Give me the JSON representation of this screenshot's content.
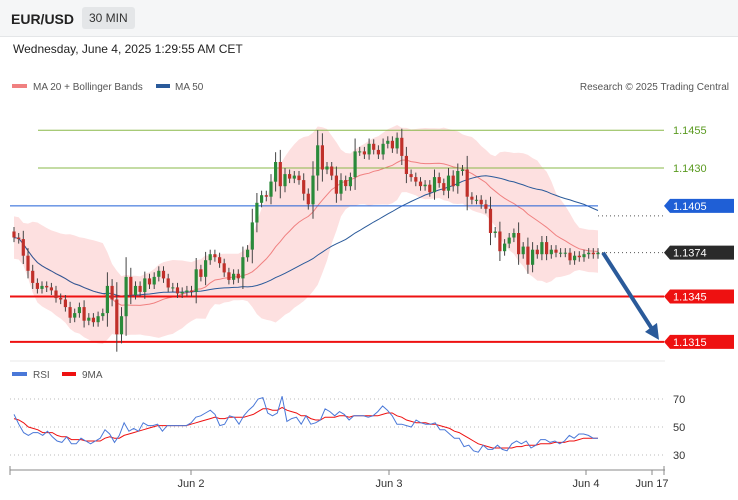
{
  "header": {
    "pair": "EUR/USD",
    "timeframe": "30 MIN"
  },
  "timestamp": "Wednesday, June 4, 2025 1:29:55 AM CET",
  "legend": {
    "ma20": "MA 20 + Bollinger Bands",
    "ma50": "MA 50",
    "credit": "Research © 2025 Trading Central"
  },
  "rsi_legend": {
    "rsi": "RSI",
    "ma9": "9MA"
  },
  "colors": {
    "support": "#ee1111",
    "pivot": "#1f5fd6",
    "resistance": "#8ab84a",
    "ma20": "#f08080",
    "ma50": "#2a5a9a",
    "candle_up": "#2a8a3a",
    "candle_down": "#c0302a",
    "arrow": "#2a5a9a"
  },
  "chart_data": [
    {
      "type": "candlestick",
      "title": "EUR/USD",
      "ylim": [
        1.1303,
        1.1475
      ],
      "levels": [
        {
          "value": "1.1455",
          "kind": "resistance"
        },
        {
          "value": "1.1430",
          "kind": "resistance"
        },
        {
          "value": "1.1405",
          "kind": "pivot"
        },
        {
          "value": "1.1374",
          "kind": "current"
        },
        {
          "value": "1.1345",
          "kind": "support"
        },
        {
          "value": "1.1315",
          "kind": "support"
        }
      ],
      "close": [
        1.1384,
        1.1383,
        1.1372,
        1.1362,
        1.1354,
        1.135,
        1.1352,
        1.1351,
        1.1349,
        1.1344,
        1.1343,
        1.1338,
        1.1331,
        1.1334,
        1.1338,
        1.1329,
        1.1331,
        1.1328,
        1.1332,
        1.1334,
        1.1352,
        1.1343,
        1.132,
        1.1332,
        1.1358,
        1.1346,
        1.1352,
        1.1348,
        1.1357,
        1.1353,
        1.1358,
        1.1362,
        1.1357,
        1.1351,
        1.1351,
        1.1347,
        1.1348,
        1.1349,
        1.1348,
        1.1363,
        1.1358,
        1.1369,
        1.1373,
        1.1371,
        1.1367,
        1.1361,
        1.1356,
        1.136,
        1.1357,
        1.1371,
        1.1376,
        1.1394,
        1.1407,
        1.1412,
        1.1411,
        1.1421,
        1.1434,
        1.1418,
        1.1426,
        1.1423,
        1.1425,
        1.1422,
        1.1413,
        1.1406,
        1.1425,
        1.1445,
        1.1429,
        1.1431,
        1.1425,
        1.1413,
        1.1422,
        1.1418,
        1.1424,
        1.1441,
        1.1441,
        1.1439,
        1.1446,
        1.1442,
        1.1439,
        1.1446,
        1.1448,
        1.1443,
        1.145,
        1.1438,
        1.1426,
        1.1424,
        1.1421,
        1.1418,
        1.1419,
        1.1414,
        1.1424,
        1.142,
        1.1415,
        1.1425,
        1.1418,
        1.1428,
        1.1429,
        1.1411,
        1.1409,
        1.1409,
        1.1406,
        1.1403,
        1.1387,
        1.1388,
        1.1375,
        1.138,
        1.1384,
        1.1387,
        1.1373,
        1.1378,
        1.1366,
        1.1376,
        1.1373,
        1.1381,
        1.1373,
        1.1376,
        1.1374,
        1.1374,
        1.1374,
        1.1369,
        1.1372,
        1.1371,
        1.1373,
        1.1374,
        1.1373,
        1.1374
      ],
      "x_labels": [
        "Jun 2",
        "Jun 3",
        "Jun 4",
        "Jun 17"
      ],
      "forecast_target": 1.1315
    },
    {
      "type": "line",
      "title": "RSI",
      "ylim": [
        25,
        80
      ],
      "y_ticks": [
        "70",
        "50",
        "30"
      ],
      "series": [
        {
          "name": "RSI",
          "values": [
            59,
            52,
            46,
            44,
            46,
            46,
            44,
            47,
            43,
            40,
            39,
            43,
            38,
            38,
            42,
            40,
            38,
            40,
            42,
            48,
            45,
            39,
            44,
            53,
            47,
            49,
            47,
            53,
            51,
            51,
            52,
            47,
            51,
            51,
            51,
            51,
            51,
            53,
            57,
            58,
            60,
            62,
            59,
            51,
            52,
            58,
            57,
            52,
            58,
            62,
            65,
            70,
            71,
            60,
            58,
            60,
            72,
            54,
            56,
            57,
            52,
            58,
            52,
            53,
            55,
            63,
            61,
            58,
            61,
            59,
            55,
            58,
            58,
            58,
            57,
            58,
            61,
            65,
            62,
            58,
            52,
            52,
            51,
            50,
            55,
            53,
            52,
            52,
            53,
            48,
            48,
            45,
            42,
            42,
            36,
            37,
            33,
            32,
            37,
            34,
            34,
            37,
            34,
            33,
            38,
            40,
            38,
            40,
            35,
            37,
            41,
            41,
            39,
            40,
            38,
            40,
            44,
            42,
            45,
            45,
            44,
            42,
            42
          ]
        },
        {
          "name": "9MA",
          "values": [
            56,
            55,
            53,
            50,
            49,
            48,
            46,
            46,
            46,
            44,
            43,
            43,
            41,
            41,
            41,
            40,
            40,
            40,
            40,
            42,
            43,
            42,
            42,
            44,
            45,
            46,
            47,
            48,
            49,
            50,
            51,
            51,
            51,
            51,
            51,
            51,
            51,
            52,
            53,
            54,
            55,
            56,
            57,
            56,
            56,
            57,
            57,
            57,
            57,
            58,
            59,
            61,
            63,
            63,
            62,
            62,
            64,
            62,
            61,
            60,
            58,
            58,
            56,
            55,
            55,
            57,
            57,
            57,
            58,
            58,
            57,
            58,
            58,
            58,
            58,
            58,
            58,
            59,
            60,
            60,
            58,
            57,
            55,
            54,
            53,
            53,
            53,
            52,
            52,
            51,
            50,
            49,
            47,
            46,
            44,
            42,
            40,
            38,
            37,
            36,
            35,
            35,
            35,
            35,
            35,
            36,
            36,
            37,
            37,
            37,
            38,
            38,
            38,
            39,
            39,
            39,
            40,
            40,
            41,
            42,
            42,
            42,
            42
          ]
        }
      ],
      "x_labels": [
        "Jun 2",
        "Jun 3",
        "Jun 4",
        "Jun 17"
      ]
    }
  ]
}
